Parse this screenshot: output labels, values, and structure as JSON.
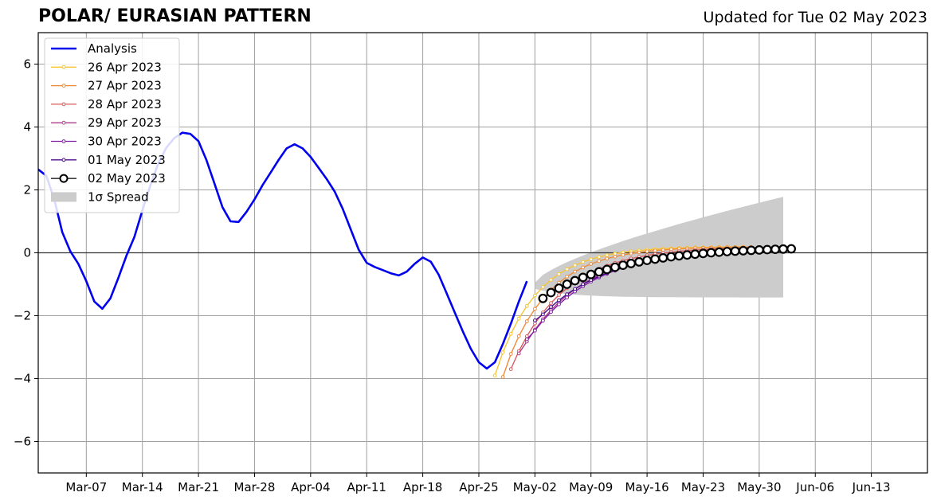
{
  "chart_data": {
    "type": "line",
    "title": "POLAR/ EURASIAN  PATTERN",
    "updated": "Updated for Tue 02 May 2023",
    "xlabel": "",
    "ylabel": "",
    "ylim": [
      -7,
      7
    ],
    "yticks": [
      -6,
      -4,
      -2,
      0,
      2,
      4,
      6
    ],
    "ytick_labels": [
      "−6",
      "−4",
      "−2",
      "0",
      "2",
      "4",
      "6"
    ],
    "xlim": [
      "2023-03-01",
      "2023-06-20"
    ],
    "xticks": [
      "2023-03-07",
      "2023-03-14",
      "2023-03-21",
      "2023-03-28",
      "2023-04-04",
      "2023-04-11",
      "2023-04-18",
      "2023-04-25",
      "2023-05-02",
      "2023-05-09",
      "2023-05-16",
      "2023-05-23",
      "2023-05-30",
      "2023-06-06",
      "2023-06-13"
    ],
    "xtick_labels": [
      "Mar-07",
      "Mar-14",
      "Mar-21",
      "Mar-28",
      "Apr-04",
      "Apr-11",
      "Apr-18",
      "Apr-25",
      "May-02",
      "May-09",
      "May-16",
      "May-23",
      "May-30",
      "Jun-06",
      "Jun-13"
    ],
    "grid": true,
    "legend": {
      "position": "top-left",
      "entries": [
        "Analysis",
        "26 Apr 2023",
        "27 Apr 2023",
        "28 Apr 2023",
        "29 Apr 2023",
        "30 Apr 2023",
        "01 May 2023",
        "02 May 2023",
        "1σ Spread"
      ]
    },
    "analysis": {
      "name": "Analysis",
      "color": "#0000ee",
      "start": "2023-03-01",
      "values": [
        2.65,
        2.45,
        1.7,
        0.65,
        0.05,
        -0.35,
        -0.9,
        -1.55,
        -1.78,
        -1.45,
        -0.8,
        -0.1,
        0.5,
        1.35,
        2.15,
        2.85,
        3.35,
        3.65,
        3.82,
        3.78,
        3.55,
        2.95,
        2.2,
        1.45,
        1.0,
        0.98,
        1.3,
        1.7,
        2.15,
        2.55,
        2.95,
        3.32,
        3.45,
        3.32,
        3.05,
        2.7,
        2.35,
        1.95,
        1.4,
        0.75,
        0.1,
        -0.32,
        -0.45,
        -0.55,
        -0.65,
        -0.72,
        -0.6,
        -0.35,
        -0.15,
        -0.28,
        -0.7,
        -1.3,
        -1.9,
        -2.5,
        -3.05,
        -3.48,
        -3.68,
        -3.48,
        -2.9,
        -2.25,
        -1.55,
        -0.9
      ]
    },
    "forecasts": [
      {
        "name": "26 Apr 2023",
        "color": "#f6c633",
        "start": "2023-04-27",
        "v0": -3.9,
        "amp": -4.08,
        "tau": 5.2
      },
      {
        "name": "27 Apr 2023",
        "color": "#ee8c3a",
        "start": "2023-04-28",
        "v0": -3.95,
        "amp": -4.1,
        "tau": 5.5
      },
      {
        "name": "28 Apr 2023",
        "color": "#d85c5e",
        "start": "2023-04-29",
        "v0": -3.7,
        "amp": -3.88,
        "tau": 6.5
      },
      {
        "name": "29 Apr 2023",
        "color": "#b03c8c",
        "start": "2023-04-30",
        "v0": -3.2,
        "amp": -3.45,
        "tau": 7.5
      },
      {
        "name": "30 Apr 2023",
        "color": "#8420a8",
        "start": "2023-05-01",
        "v0": -2.75,
        "amp": -3.03,
        "tau": 8.0
      },
      {
        "name": "01 May 2023",
        "color": "#4a0c8f",
        "start": "2023-05-02",
        "v0": -2.15,
        "amp": -2.43,
        "tau": 8.5
      },
      {
        "name": "02 May 2023",
        "color": "#000000",
        "start": "2023-05-03",
        "v0": -1.45,
        "amp": -1.62,
        "tau": 10.0,
        "marker": "open-circle"
      }
    ],
    "forecast_length_days": 32,
    "spread": {
      "name": "1σ Spread",
      "color": "#cccccc",
      "start": "2023-05-02",
      "end": "2023-06-02",
      "upper_start": -0.95,
      "upper_end": 1.78,
      "lower_start": -1.15,
      "lower_end": -1.42
    },
    "zero_line": true
  }
}
